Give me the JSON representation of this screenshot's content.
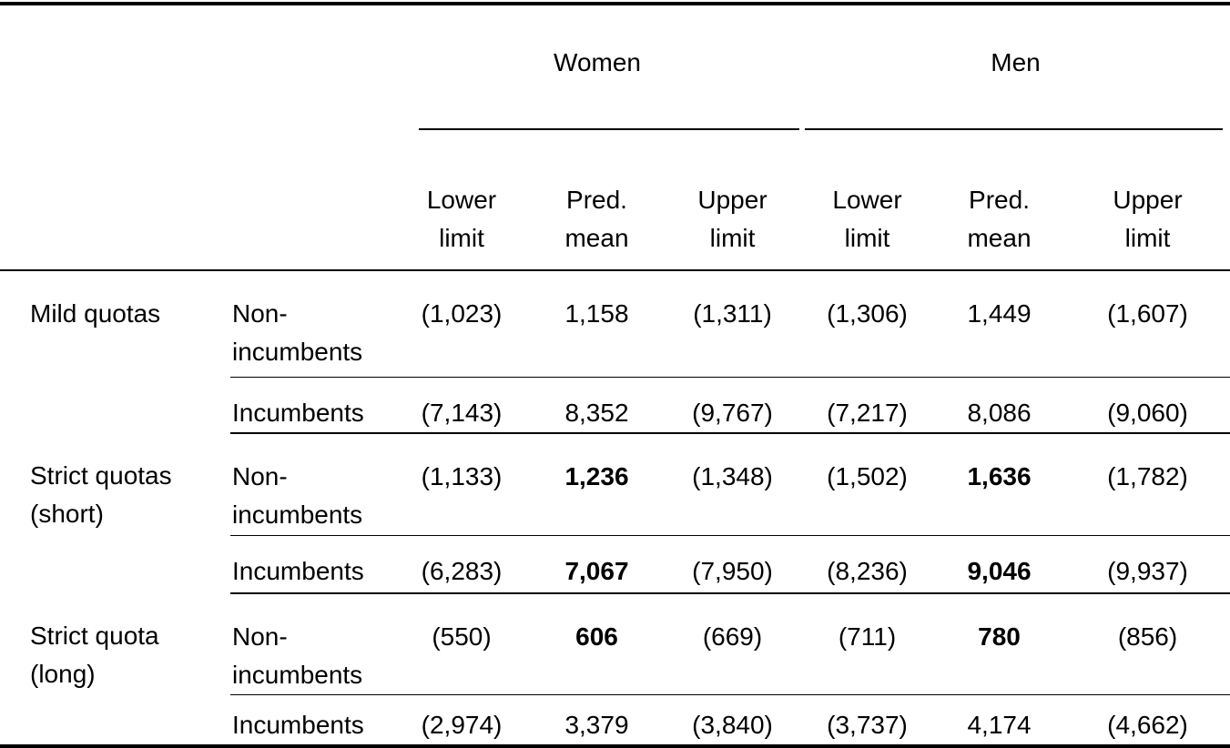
{
  "colors": {
    "text": "#000000",
    "background": "#ffffff",
    "rules": "#000000"
  },
  "table": {
    "spanners": [
      {
        "label": "Women"
      },
      {
        "label": "Men"
      }
    ],
    "columns": [
      {
        "label": "Lower\nlimit"
      },
      {
        "label": "Pred.\nmean"
      },
      {
        "label": "Upper\nlimit"
      },
      {
        "label": "Lower\nlimit"
      },
      {
        "label": "Pred.\nmean"
      },
      {
        "label": "Upper\nlimit"
      }
    ],
    "groups": [
      {
        "label": "Mild quotas",
        "rows": [
          {
            "label": "Non-\nincumbents",
            "values": [
              "(1,023)",
              "1,158",
              "(1,311)",
              "(1,306)",
              "1,449",
              "(1,607)"
            ]
          },
          {
            "label": "Incumbents",
            "values": [
              "(7,143)",
              "8,352",
              "(9,767)",
              "(7,217)",
              "8,086",
              "(9,060)"
            ]
          }
        ]
      },
      {
        "label": "Strict quotas\n(short)",
        "rows": [
          {
            "label": "Non-\nincumbents",
            "values": [
              "(1,133)",
              "1,236",
              "(1,348)",
              "(1,502)",
              "1,636",
              "(1,782)"
            ]
          },
          {
            "label": "Incumbents",
            "values": [
              "(6,283)",
              "7,067",
              "(7,950)",
              "(8,236)",
              "9,046",
              "(9,937)"
            ]
          }
        ]
      },
      {
        "label": "Strict quota\n(long)",
        "rows": [
          {
            "label": "Non-\nincumbents",
            "values": [
              "(550)",
              "606",
              "(669)",
              "(711)",
              "780",
              "(856)"
            ]
          },
          {
            "label": "Incumbents",
            "values": [
              "(2,974)",
              "3,379",
              "(3,840)",
              "(3,737)",
              "4,174",
              "(4,662)"
            ]
          }
        ]
      }
    ]
  }
}
